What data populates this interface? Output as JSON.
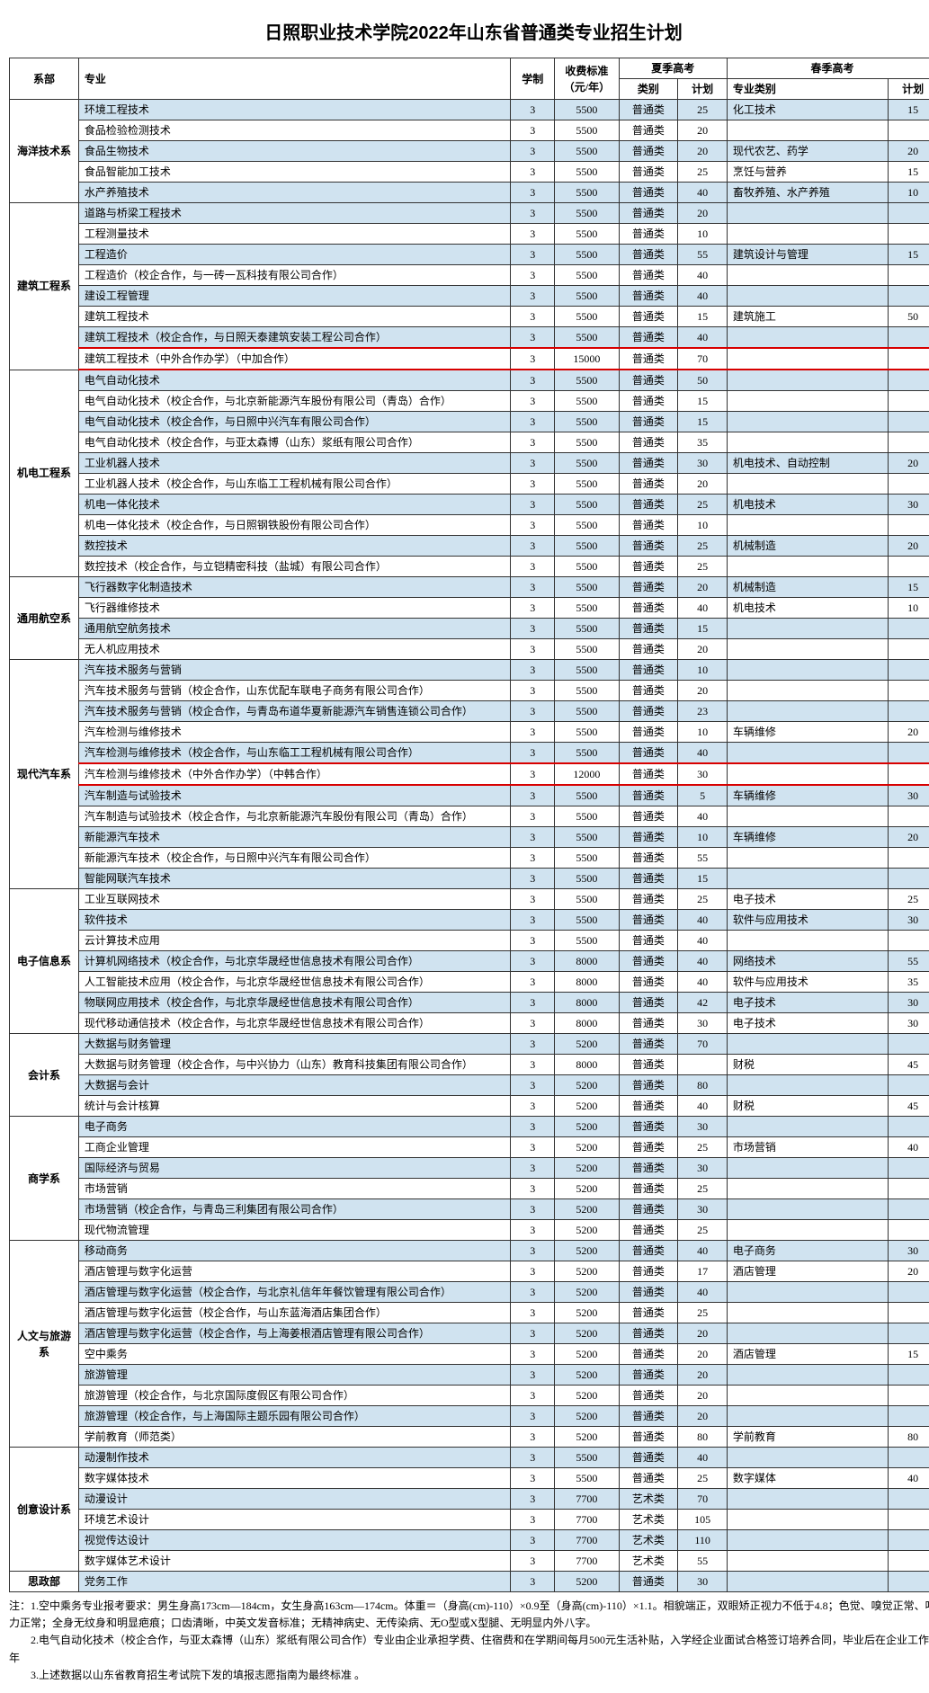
{
  "title": "日照职业技术学院2022年山东省普通类专业招生计划",
  "headers": {
    "dept": "系部",
    "major": "专业",
    "xz": "学制",
    "fee": "收费标准\n（元/年）",
    "summer": "夏季高考",
    "spring": "春季高考",
    "cat": "类别",
    "plan": "计划",
    "scat": "专业类别",
    "splan": "计划"
  },
  "depts": [
    {
      "name": "海洋技术系",
      "rows": [
        {
          "m": "环境工程技术",
          "x": 3,
          "f": 5500,
          "c": "普通类",
          "p": 25,
          "sc": "化工技术",
          "sp": 15,
          "alt": 1
        },
        {
          "m": "食品检验检测技术",
          "x": 3,
          "f": 5500,
          "c": "普通类",
          "p": 20
        },
        {
          "m": "食品生物技术",
          "x": 3,
          "f": 5500,
          "c": "普通类",
          "p": 20,
          "sc": "现代农艺、药学",
          "sp": 20,
          "alt": 1
        },
        {
          "m": "食品智能加工技术",
          "x": 3,
          "f": 5500,
          "c": "普通类",
          "p": 25,
          "sc": "烹饪与营养",
          "sp": 15
        },
        {
          "m": "水产养殖技术",
          "x": 3,
          "f": 5500,
          "c": "普通类",
          "p": 40,
          "sc": "畜牧养殖、水产养殖",
          "sp": 10,
          "alt": 1
        }
      ]
    },
    {
      "name": "建筑工程系",
      "rows": [
        {
          "m": "道路与桥梁工程技术",
          "x": 3,
          "f": 5500,
          "c": "普通类",
          "p": 20,
          "alt": 1
        },
        {
          "m": "工程测量技术",
          "x": 3,
          "f": 5500,
          "c": "普通类",
          "p": 10
        },
        {
          "m": "工程造价",
          "x": 3,
          "f": 5500,
          "c": "普通类",
          "p": 55,
          "sc": "建筑设计与管理",
          "sp": 15,
          "alt": 1
        },
        {
          "m": "工程造价（校企合作，与一砖一瓦科技有限公司合作）",
          "x": 3,
          "f": 5500,
          "c": "普通类",
          "p": 40
        },
        {
          "m": "建设工程管理",
          "x": 3,
          "f": 5500,
          "c": "普通类",
          "p": 40,
          "alt": 1
        },
        {
          "m": "建筑工程技术",
          "x": 3,
          "f": 5500,
          "c": "普通类",
          "p": 15,
          "sc": "建筑施工",
          "sp": 50
        },
        {
          "m": "建筑工程技术（校企合作，与日照天泰建筑安装工程公司合作）",
          "x": 3,
          "f": 5500,
          "c": "普通类",
          "p": 40,
          "alt": 1
        },
        {
          "m": "建筑工程技术（中外合作办学）（中加合作）",
          "x": 3,
          "f": 15000,
          "c": "普通类",
          "p": 70,
          "hl": 1
        }
      ]
    },
    {
      "name": "机电工程系",
      "rows": [
        {
          "m": "电气自动化技术",
          "x": 3,
          "f": 5500,
          "c": "普通类",
          "p": 50,
          "alt": 1
        },
        {
          "m": "电气自动化技术（校企合作，与北京新能源汽车股份有限公司（青岛）合作）",
          "x": 3,
          "f": 5500,
          "c": "普通类",
          "p": 15
        },
        {
          "m": "电气自动化技术（校企合作，与日照中兴汽车有限公司合作）",
          "x": 3,
          "f": 5500,
          "c": "普通类",
          "p": 15,
          "alt": 1
        },
        {
          "m": "电气自动化技术（校企合作，与亚太森博（山东）浆纸有限公司合作）",
          "x": 3,
          "f": 5500,
          "c": "普通类",
          "p": 35
        },
        {
          "m": "工业机器人技术",
          "x": 3,
          "f": 5500,
          "c": "普通类",
          "p": 30,
          "sc": "机电技术、自动控制",
          "sp": 20,
          "alt": 1
        },
        {
          "m": "工业机器人技术（校企合作，与山东临工工程机械有限公司合作）",
          "x": 3,
          "f": 5500,
          "c": "普通类",
          "p": 20
        },
        {
          "m": "机电一体化技术",
          "x": 3,
          "f": 5500,
          "c": "普通类",
          "p": 25,
          "sc": "机电技术",
          "sp": 30,
          "alt": 1
        },
        {
          "m": "机电一体化技术（校企合作，与日照钢铁股份有限公司合作）",
          "x": 3,
          "f": 5500,
          "c": "普通类",
          "p": 10
        },
        {
          "m": "数控技术",
          "x": 3,
          "f": 5500,
          "c": "普通类",
          "p": 25,
          "sc": "机械制造",
          "sp": 20,
          "alt": 1
        },
        {
          "m": "数控技术（校企合作，与立铠精密科技（盐城）有限公司合作）",
          "x": 3,
          "f": 5500,
          "c": "普通类",
          "p": 25
        }
      ]
    },
    {
      "name": "通用航空系",
      "rows": [
        {
          "m": "飞行器数字化制造技术",
          "x": 3,
          "f": 5500,
          "c": "普通类",
          "p": 20,
          "sc": "机械制造",
          "sp": 15,
          "alt": 1
        },
        {
          "m": "飞行器维修技术",
          "x": 3,
          "f": 5500,
          "c": "普通类",
          "p": 40,
          "sc": "机电技术",
          "sp": 10
        },
        {
          "m": "通用航空航务技术",
          "x": 3,
          "f": 5500,
          "c": "普通类",
          "p": 15,
          "alt": 1
        },
        {
          "m": "无人机应用技术",
          "x": 3,
          "f": 5500,
          "c": "普通类",
          "p": 20
        }
      ]
    },
    {
      "name": "现代汽车系",
      "rows": [
        {
          "m": "汽车技术服务与营销",
          "x": 3,
          "f": 5500,
          "c": "普通类",
          "p": 10,
          "alt": 1
        },
        {
          "m": "汽车技术服务与营销（校企合作，山东优配车联电子商务有限公司合作）",
          "x": 3,
          "f": 5500,
          "c": "普通类",
          "p": 20
        },
        {
          "m": "汽车技术服务与营销（校企合作，与青岛布道华夏新能源汽车销售连锁公司合作）",
          "x": 3,
          "f": 5500,
          "c": "普通类",
          "p": 23,
          "alt": 1
        },
        {
          "m": "汽车检测与维修技术",
          "x": 3,
          "f": 5500,
          "c": "普通类",
          "p": 10,
          "sc": "车辆维修",
          "sp": 20
        },
        {
          "m": "汽车检测与维修技术（校企合作，与山东临工工程机械有限公司合作）",
          "x": 3,
          "f": 5500,
          "c": "普通类",
          "p": 40,
          "alt": 1
        },
        {
          "m": "汽车检测与维修技术（中外合作办学）（中韩合作）",
          "x": 3,
          "f": 12000,
          "c": "普通类",
          "p": 30,
          "hl": 1
        },
        {
          "m": "汽车制造与试验技术",
          "x": 3,
          "f": 5500,
          "c": "普通类",
          "p": 5,
          "sc": "车辆维修",
          "sp": 30,
          "alt": 1
        },
        {
          "m": "汽车制造与试验技术（校企合作，与北京新能源汽车股份有限公司（青岛）合作）",
          "x": 3,
          "f": 5500,
          "c": "普通类",
          "p": 40
        },
        {
          "m": "新能源汽车技术",
          "x": 3,
          "f": 5500,
          "c": "普通类",
          "p": 10,
          "sc": "车辆维修",
          "sp": 20,
          "alt": 1
        },
        {
          "m": "新能源汽车技术（校企合作，与日照中兴汽车有限公司合作）",
          "x": 3,
          "f": 5500,
          "c": "普通类",
          "p": 55
        },
        {
          "m": "智能网联汽车技术",
          "x": 3,
          "f": 5500,
          "c": "普通类",
          "p": 15,
          "alt": 1
        }
      ]
    },
    {
      "name": "电子信息系",
      "rows": [
        {
          "m": "工业互联网技术",
          "x": 3,
          "f": 5500,
          "c": "普通类",
          "p": 25,
          "sc": "电子技术",
          "sp": 25
        },
        {
          "m": "软件技术",
          "x": 3,
          "f": 5500,
          "c": "普通类",
          "p": 40,
          "sc": "软件与应用技术",
          "sp": 30,
          "alt": 1
        },
        {
          "m": "云计算技术应用",
          "x": 3,
          "f": 5500,
          "c": "普通类",
          "p": 40
        },
        {
          "m": "计算机网络技术（校企合作，与北京华晟经世信息技术有限公司合作）",
          "x": 3,
          "f": 8000,
          "c": "普通类",
          "p": 40,
          "sc": "网络技术",
          "sp": 55,
          "alt": 1
        },
        {
          "m": "人工智能技术应用（校企合作，与北京华晟经世信息技术有限公司合作）",
          "x": 3,
          "f": 8000,
          "c": "普通类",
          "p": 40,
          "sc": "软件与应用技术",
          "sp": 35
        },
        {
          "m": "物联网应用技术（校企合作，与北京华晟经世信息技术有限公司合作）",
          "x": 3,
          "f": 8000,
          "c": "普通类",
          "p": 42,
          "sc": "电子技术",
          "sp": 30,
          "alt": 1
        },
        {
          "m": "现代移动通信技术（校企合作，与北京华晟经世信息技术有限公司合作）",
          "x": 3,
          "f": 8000,
          "c": "普通类",
          "p": 30,
          "sc": "电子技术",
          "sp": 30
        }
      ]
    },
    {
      "name": "会计系",
      "rows": [
        {
          "m": "大数据与财务管理",
          "x": 3,
          "f": 5200,
          "c": "普通类",
          "p": 70,
          "alt": 1
        },
        {
          "m": "大数据与财务管理（校企合作，与中兴协力（山东）教育科技集团有限公司合作）",
          "x": 3,
          "f": 8000,
          "c": "普通类",
          "p": "",
          "sc": "财税",
          "sp": 45
        },
        {
          "m": "大数据与会计",
          "x": 3,
          "f": 5200,
          "c": "普通类",
          "p": 80,
          "alt": 1
        },
        {
          "m": "统计与会计核算",
          "x": 3,
          "f": 5200,
          "c": "普通类",
          "p": 40,
          "sc": "财税",
          "sp": 45
        }
      ]
    },
    {
      "name": "商学系",
      "rows": [
        {
          "m": "电子商务",
          "x": 3,
          "f": 5200,
          "c": "普通类",
          "p": 30,
          "alt": 1
        },
        {
          "m": "工商企业管理",
          "x": 3,
          "f": 5200,
          "c": "普通类",
          "p": 25,
          "sc": "市场营销",
          "sp": 40
        },
        {
          "m": "国际经济与贸易",
          "x": 3,
          "f": 5200,
          "c": "普通类",
          "p": 30,
          "alt": 1
        },
        {
          "m": "市场营销",
          "x": 3,
          "f": 5200,
          "c": "普通类",
          "p": 25
        },
        {
          "m": "市场营销（校企合作，与青岛三利集团有限公司合作）",
          "x": 3,
          "f": 5200,
          "c": "普通类",
          "p": 30,
          "alt": 1
        },
        {
          "m": "现代物流管理",
          "x": 3,
          "f": 5200,
          "c": "普通类",
          "p": 25
        }
      ]
    },
    {
      "name": "人文与旅游系",
      "rows": [
        {
          "m": "移动商务",
          "x": 3,
          "f": 5200,
          "c": "普通类",
          "p": 40,
          "sc": "电子商务",
          "sp": 30,
          "alt": 1
        },
        {
          "m": "酒店管理与数字化运营",
          "x": 3,
          "f": 5200,
          "c": "普通类",
          "p": 17,
          "sc": "酒店管理",
          "sp": 20
        },
        {
          "m": "酒店管理与数字化运营（校企合作，与北京礼信年年餐饮管理有限公司合作）",
          "x": 3,
          "f": 5200,
          "c": "普通类",
          "p": 40,
          "alt": 1
        },
        {
          "m": "酒店管理与数字化运营（校企合作，与山东蓝海酒店集团合作）",
          "x": 3,
          "f": 5200,
          "c": "普通类",
          "p": 25
        },
        {
          "m": "酒店管理与数字化运营（校企合作，与上海姜根酒店管理有限公司合作）",
          "x": 3,
          "f": 5200,
          "c": "普通类",
          "p": 20,
          "alt": 1
        },
        {
          "m": "空中乘务",
          "x": 3,
          "f": 5200,
          "c": "普通类",
          "p": 20,
          "sc": "酒店管理",
          "sp": 15
        },
        {
          "m": "旅游管理",
          "x": 3,
          "f": 5200,
          "c": "普通类",
          "p": 20,
          "alt": 1
        },
        {
          "m": "旅游管理（校企合作，与北京国际度假区有限公司合作）",
          "x": 3,
          "f": 5200,
          "c": "普通类",
          "p": 20
        },
        {
          "m": "旅游管理（校企合作，与上海国际主题乐园有限公司合作）",
          "x": 3,
          "f": 5200,
          "c": "普通类",
          "p": 20,
          "alt": 1
        },
        {
          "m": "学前教育（师范类）",
          "x": 3,
          "f": 5200,
          "c": "普通类",
          "p": 80,
          "sc": "学前教育",
          "sp": 80
        }
      ]
    },
    {
      "name": "创意设计系",
      "rows": [
        {
          "m": "动漫制作技术",
          "x": 3,
          "f": 5500,
          "c": "普通类",
          "p": 40,
          "alt": 1
        },
        {
          "m": "数字媒体技术",
          "x": 3,
          "f": 5500,
          "c": "普通类",
          "p": 25,
          "sc": "数字媒体",
          "sp": 40
        },
        {
          "m": "动漫设计",
          "x": 3,
          "f": 7700,
          "c": "艺术类",
          "p": 70,
          "alt": 1
        },
        {
          "m": "环境艺术设计",
          "x": 3,
          "f": 7700,
          "c": "艺术类",
          "p": 105
        },
        {
          "m": "视觉传达设计",
          "x": 3,
          "f": 7700,
          "c": "艺术类",
          "p": 110,
          "alt": 1
        },
        {
          "m": "数字媒体艺术设计",
          "x": 3,
          "f": 7700,
          "c": "艺术类",
          "p": 55
        }
      ]
    },
    {
      "name": "思政部",
      "rows": [
        {
          "m": "党务工作",
          "x": 3,
          "f": 5200,
          "c": "普通类",
          "p": 30,
          "alt": 1
        }
      ]
    }
  ],
  "notes": [
    "注：1.空中乘务专业报考要求：男生身高173cm—184cm，女生身高163cm—174cm。体重＝（身高(cm)-110）×0.9至（身高(cm)-110）×1.1。相貌端正，双眼矫正视力不低于4.8；色觉、嗅觉正常、听力正常；全身无纹身和明显疤痕；口齿清晰，中英文发音标准；无精神病史、无传染病、无O型或X型腿、无明显内外八字。",
    "　　2.电气自动化技术（校企合作，与亚太森博（山东）浆纸有限公司合作）专业由企业承担学费、住宿费和在学期间每月500元生活补贴，入学经企业面试合格签订培养合同，毕业后在企业工作5年",
    "　　3.上述数据以山东省教育招生考试院下发的填报志愿指南为最终标准 。"
  ]
}
